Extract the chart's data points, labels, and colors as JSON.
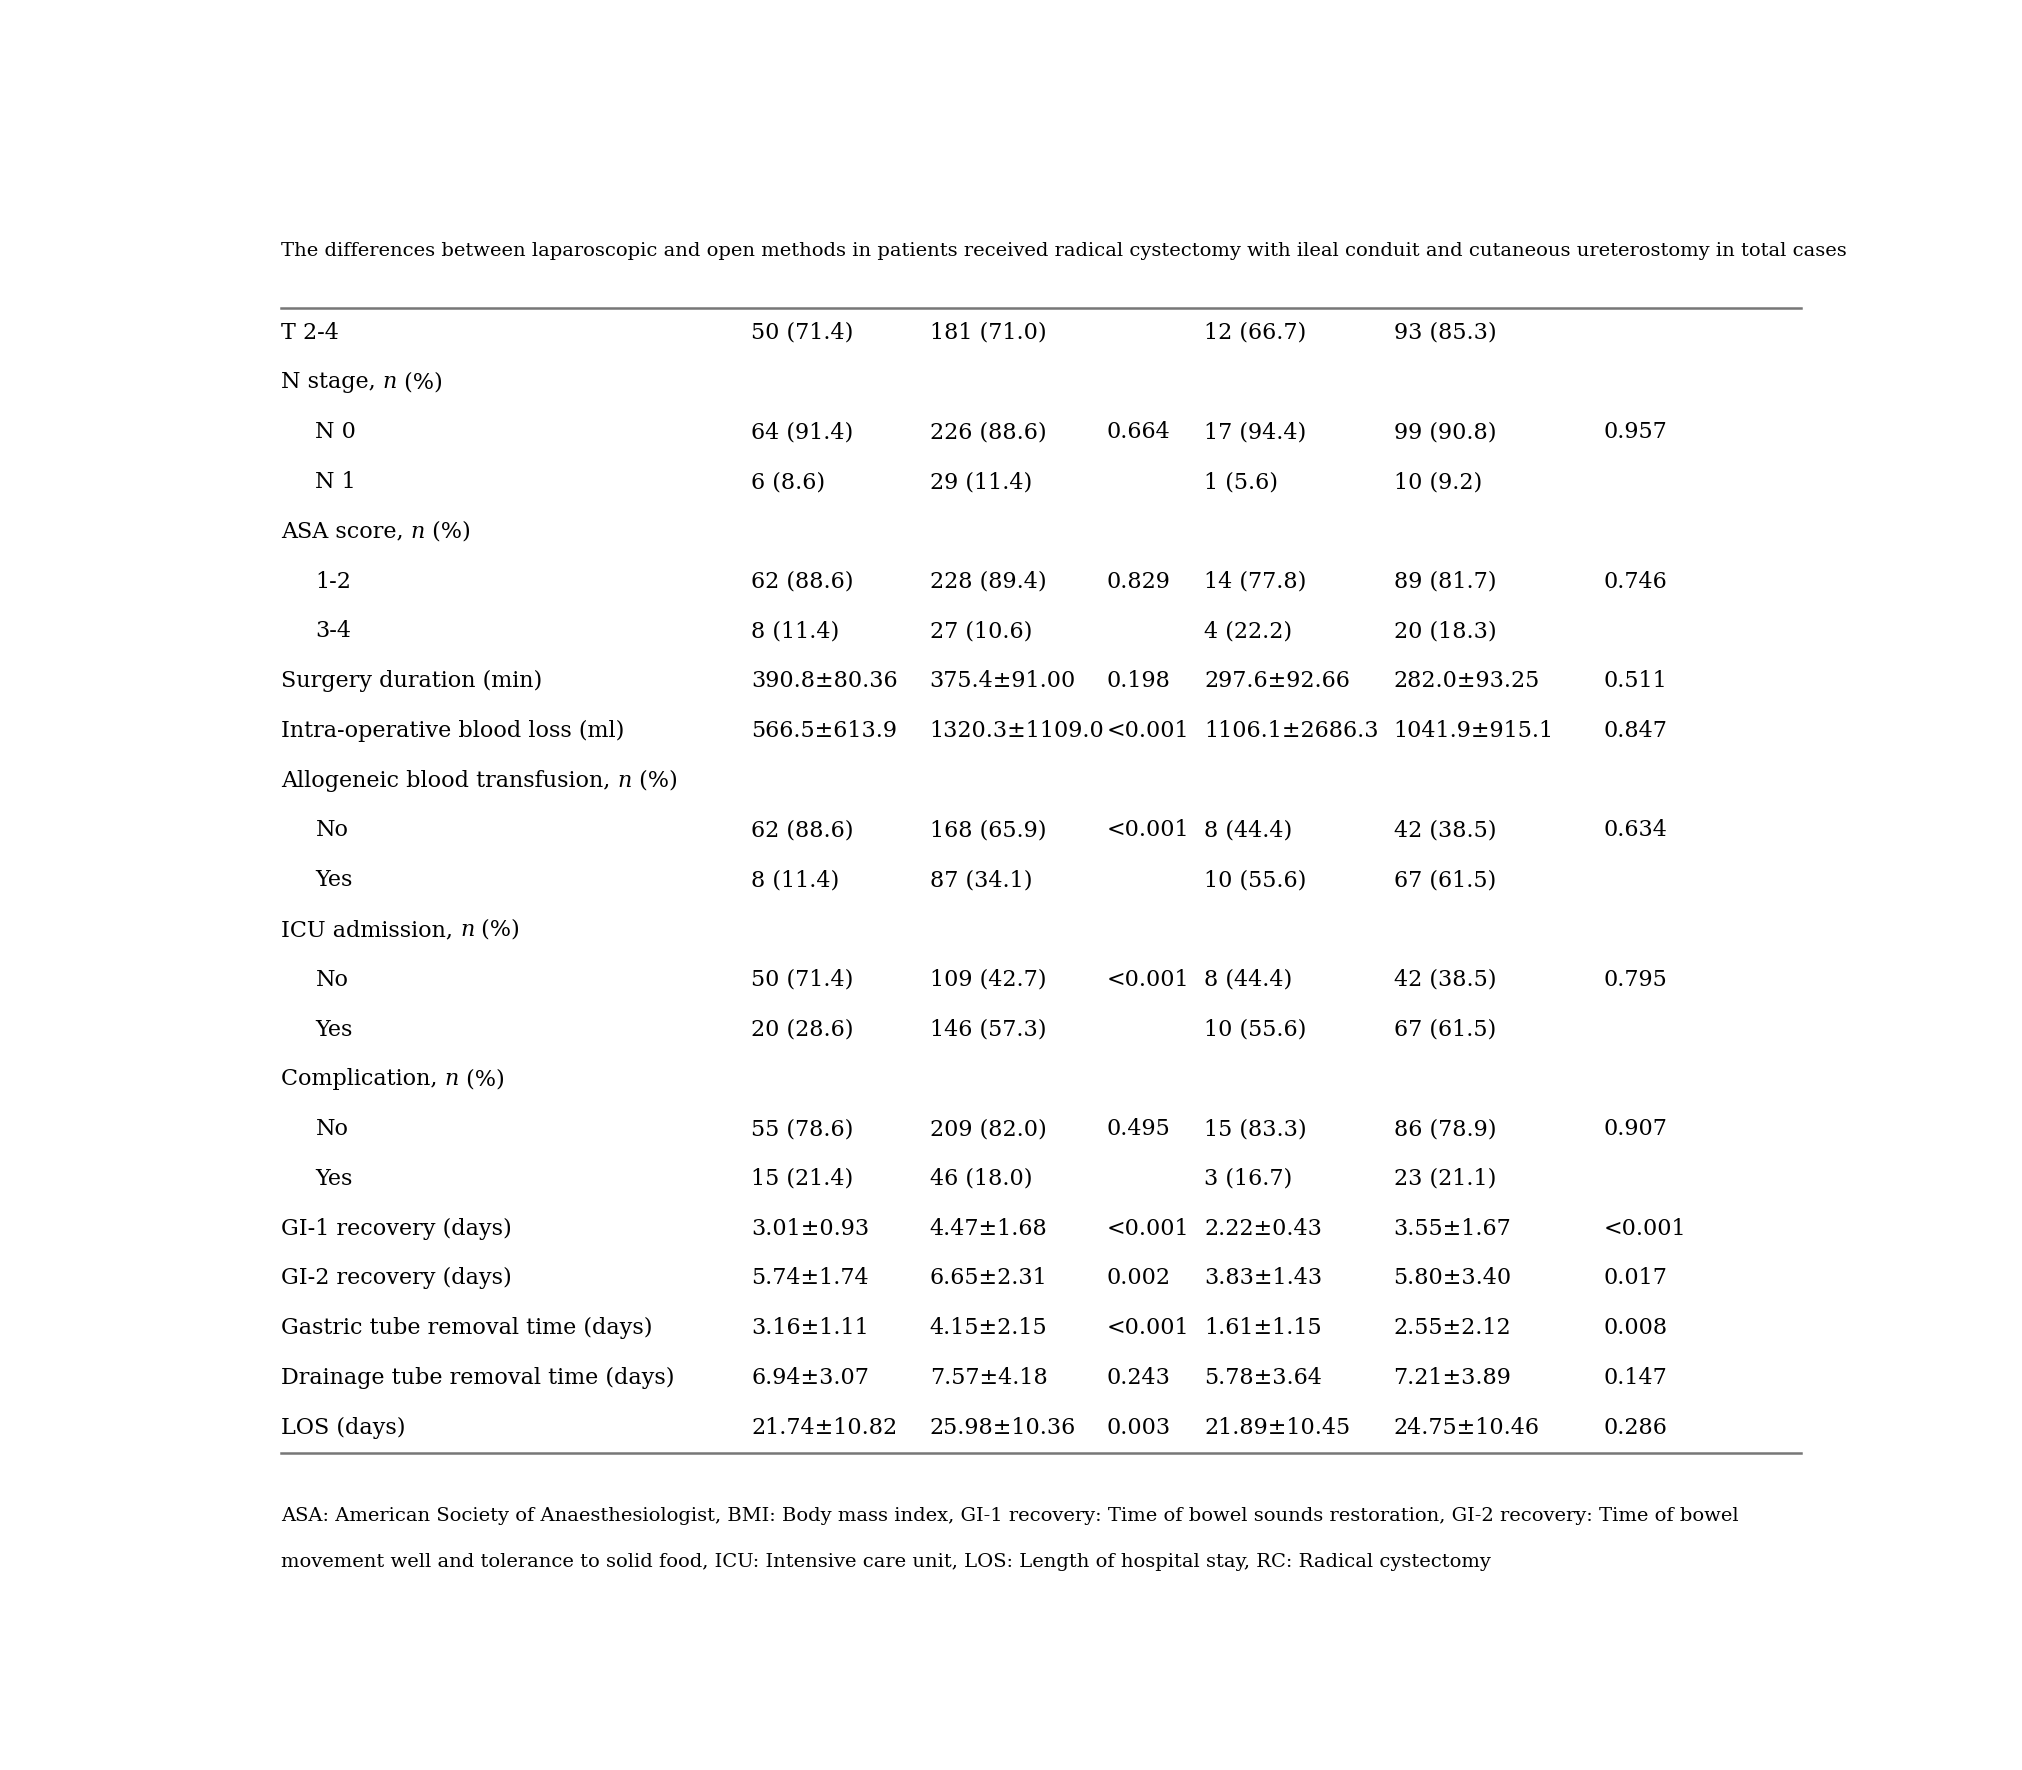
{
  "title": "The differences between laparoscopic and open methods in patients received radical cystectomy with ileal conduit and cutaneous ureterostomy in total cases",
  "footnote_line1": "ASA: American Society of Anaesthesiologist, BMI: Body mass index, GI-1 recovery: Time of bowel sounds restoration, GI-2 recovery: Time of bowel",
  "footnote_line2": "movement well and tolerance to solid food, ICU: Intensive care unit, LOS: Length of hospital stay, RC: Radical cystectomy",
  "rows": [
    {
      "label": "T 2-4",
      "indent": 0,
      "italic_n": false,
      "col1": "50 (71.4)",
      "col2": "181 (71.0)",
      "col3": "",
      "col4": "12 (66.7)",
      "col5": "93 (85.3)",
      "col6": ""
    },
    {
      "label": "N stage, ",
      "indent": 0,
      "italic_n": true,
      "col1": "",
      "col2": "",
      "col3": "",
      "col4": "",
      "col5": "",
      "col6": ""
    },
    {
      "label": "N 0",
      "indent": 1,
      "italic_n": false,
      "col1": "64 (91.4)",
      "col2": "226 (88.6)",
      "col3": "0.664",
      "col4": "17 (94.4)",
      "col5": "99 (90.8)",
      "col6": "0.957"
    },
    {
      "label": "N 1",
      "indent": 1,
      "italic_n": false,
      "col1": "6 (8.6)",
      "col2": "29 (11.4)",
      "col3": "",
      "col4": "1 (5.6)",
      "col5": "10 (9.2)",
      "col6": ""
    },
    {
      "label": "ASA score, ",
      "indent": 0,
      "italic_n": true,
      "col1": "",
      "col2": "",
      "col3": "",
      "col4": "",
      "col5": "",
      "col6": ""
    },
    {
      "label": "1-2",
      "indent": 1,
      "italic_n": false,
      "col1": "62 (88.6)",
      "col2": "228 (89.4)",
      "col3": "0.829",
      "col4": "14 (77.8)",
      "col5": "89 (81.7)",
      "col6": "0.746"
    },
    {
      "label": "3-4",
      "indent": 1,
      "italic_n": false,
      "col1": "8 (11.4)",
      "col2": "27 (10.6)",
      "col3": "",
      "col4": "4 (22.2)",
      "col5": "20 (18.3)",
      "col6": ""
    },
    {
      "label": "Surgery duration (min)",
      "indent": 0,
      "italic_n": false,
      "col1": "390.8±80.36",
      "col2": "375.4±91.00",
      "col3": "0.198",
      "col4": "297.6±92.66",
      "col5": "282.0±93.25",
      "col6": "0.511"
    },
    {
      "label": "Intra-operative blood loss (ml)",
      "indent": 0,
      "italic_n": false,
      "col1": "566.5±613.9",
      "col2": "1320.3±1109.0",
      "col3": "<0.001",
      "col4": "1106.1±2686.3",
      "col5": "1041.9±915.1",
      "col6": "0.847"
    },
    {
      "label": "Allogeneic blood transfusion, ",
      "indent": 0,
      "italic_n": true,
      "col1": "",
      "col2": "",
      "col3": "",
      "col4": "",
      "col5": "",
      "col6": ""
    },
    {
      "label": "No",
      "indent": 1,
      "italic_n": false,
      "col1": "62 (88.6)",
      "col2": "168 (65.9)",
      "col3": "<0.001",
      "col4": "8 (44.4)",
      "col5": "42 (38.5)",
      "col6": "0.634"
    },
    {
      "label": "Yes",
      "indent": 1,
      "italic_n": false,
      "col1": "8 (11.4)",
      "col2": "87 (34.1)",
      "col3": "",
      "col4": "10 (55.6)",
      "col5": "67 (61.5)",
      "col6": ""
    },
    {
      "label": "ICU admission, ",
      "indent": 0,
      "italic_n": true,
      "col1": "",
      "col2": "",
      "col3": "",
      "col4": "",
      "col5": "",
      "col6": ""
    },
    {
      "label": "No",
      "indent": 1,
      "italic_n": false,
      "col1": "50 (71.4)",
      "col2": "109 (42.7)",
      "col3": "<0.001",
      "col4": "8 (44.4)",
      "col5": "42 (38.5)",
      "col6": "0.795"
    },
    {
      "label": "Yes",
      "indent": 1,
      "italic_n": false,
      "col1": "20 (28.6)",
      "col2": "146 (57.3)",
      "col3": "",
      "col4": "10 (55.6)",
      "col5": "67 (61.5)",
      "col6": ""
    },
    {
      "label": "Complication, ",
      "indent": 0,
      "italic_n": true,
      "col1": "",
      "col2": "",
      "col3": "",
      "col4": "",
      "col5": "",
      "col6": ""
    },
    {
      "label": "No",
      "indent": 1,
      "italic_n": false,
      "col1": "55 (78.6)",
      "col2": "209 (82.0)",
      "col3": "0.495",
      "col4": "15 (83.3)",
      "col5": "86 (78.9)",
      "col6": "0.907"
    },
    {
      "label": "Yes",
      "indent": 1,
      "italic_n": false,
      "col1": "15 (21.4)",
      "col2": "46 (18.0)",
      "col3": "",
      "col4": "3 (16.7)",
      "col5": "23 (21.1)",
      "col6": ""
    },
    {
      "label": "GI-1 recovery (days)",
      "indent": 0,
      "italic_n": false,
      "col1": "3.01±0.93",
      "col2": "4.47±1.68",
      "col3": "<0.001",
      "col4": "2.22±0.43",
      "col5": "3.55±1.67",
      "col6": "<0.001"
    },
    {
      "label": "GI-2 recovery (days)",
      "indent": 0,
      "italic_n": false,
      "col1": "5.74±1.74",
      "col2": "6.65±2.31",
      "col3": "0.002",
      "col4": "3.83±1.43",
      "col5": "5.80±3.40",
      "col6": "0.017"
    },
    {
      "label": "Gastric tube removal time (days)",
      "indent": 0,
      "italic_n": false,
      "col1": "3.16±1.11",
      "col2": "4.15±2.15",
      "col3": "<0.001",
      "col4": "1.61±1.15",
      "col5": "2.55±2.12",
      "col6": "0.008"
    },
    {
      "label": "Drainage tube removal time (days)",
      "indent": 0,
      "italic_n": false,
      "col1": "6.94±3.07",
      "col2": "7.57±4.18",
      "col3": "0.243",
      "col4": "5.78±3.64",
      "col5": "7.21±3.89",
      "col6": "0.147"
    },
    {
      "label": "LOS (days)",
      "indent": 0,
      "italic_n": false,
      "col1": "21.74±10.82",
      "col2": "25.98±10.36",
      "col3": "0.003",
      "col4": "21.89±10.45",
      "col5": "24.75±10.46",
      "col6": "0.286"
    }
  ],
  "bg_color": "#ffffff",
  "text_color": "#000000",
  "font_size": 16,
  "title_font_size": 14,
  "footnote_font_size": 14
}
